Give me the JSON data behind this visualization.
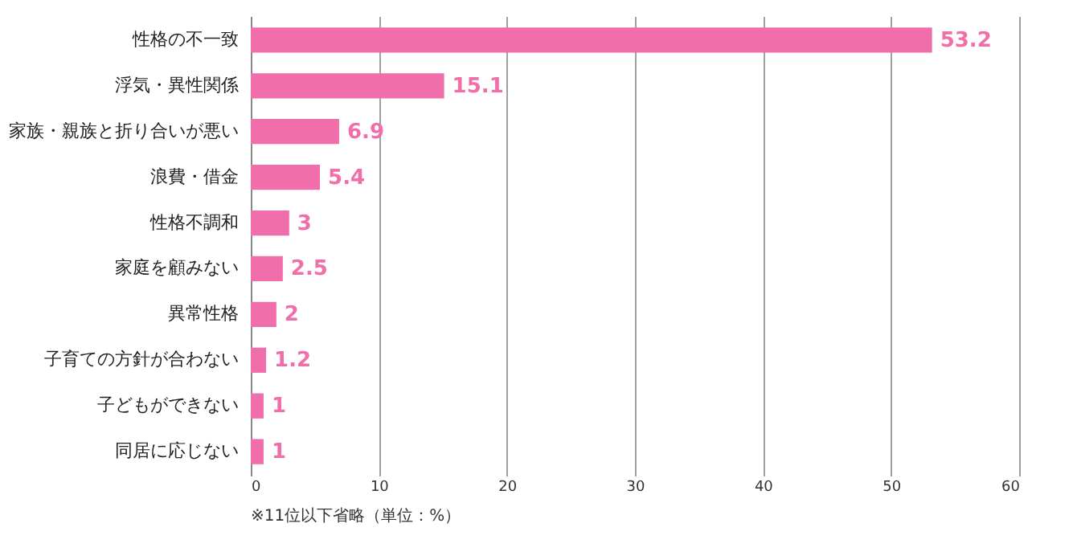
{
  "chart_data": {
    "type": "bar",
    "orientation": "horizontal",
    "categories": [
      "性格の不一致",
      "浮気・異性関係",
      "家族・親族と折り合いが悪い",
      "浪費・借金",
      "性格不調和",
      "家庭を顧みない",
      "異常性格",
      "子育ての方針が合わない",
      "子どもができない",
      "同居に応じない"
    ],
    "series": [
      {
        "color": "#f06ea9",
        "values": [
          53.2,
          15.1,
          6.9,
          5.4,
          3,
          2.5,
          2,
          1.2,
          1,
          1
        ]
      }
    ],
    "xlim": [
      0,
      60
    ],
    "xticks": [
      0,
      10,
      20,
      30,
      40,
      50,
      60
    ],
    "grid": "x",
    "data_labels": true,
    "annotations": [
      "※11位以下省略（単位：%）"
    ]
  }
}
